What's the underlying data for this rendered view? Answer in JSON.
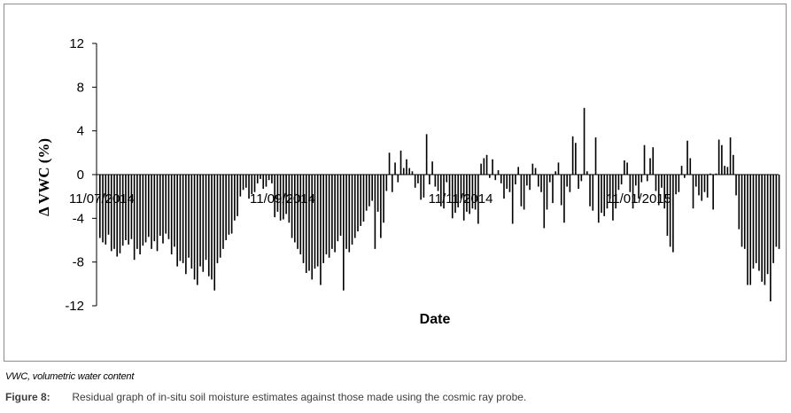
{
  "chart_data": {
    "type": "bar",
    "title": "",
    "xlabel": "Date",
    "ylabel": "Δ VWC (%)",
    "ylim": [
      -12,
      12
    ],
    "yticks": [
      12,
      8,
      4,
      0,
      -4,
      -8,
      -12
    ],
    "date_labels": [
      "11/07/2014",
      "11/09/2014",
      "11/11/2014",
      "11/01/2015"
    ],
    "grid": false,
    "legend": "none",
    "bar_color": "#000000",
    "values": [
      -5.8,
      -6.2,
      -6.4,
      -5.5,
      -7.0,
      -6.8,
      -7.5,
      -7.2,
      -6.5,
      -6.0,
      -6.4,
      -5.9,
      -7.8,
      -6.8,
      -7.3,
      -6.5,
      -6.2,
      -5.7,
      -6.8,
      -6.1,
      -7.0,
      -5.6,
      -6.3,
      -5.4,
      -5.9,
      -7.3,
      -6.6,
      -8.4,
      -7.9,
      -8.1,
      -9.1,
      -7.6,
      -8.6,
      -9.6,
      -10.1,
      -8.4,
      -8.9,
      -7.8,
      -9.3,
      -9.6,
      -10.6,
      -8.1,
      -7.6,
      -6.8,
      -6.0,
      -5.5,
      -5.4,
      -4.2,
      -3.8,
      -2.0,
      -1.4,
      -1.2,
      -2.2,
      -1.8,
      -1.6,
      -0.8,
      -0.4,
      -1.3,
      -1.1,
      -0.5,
      -0.8,
      -3.9,
      -3.4,
      -4.2,
      -4.1,
      -3.6,
      -4.4,
      -5.8,
      -6.2,
      -6.8,
      -7.3,
      -8.1,
      -9.0,
      -8.8,
      -9.6,
      -8.6,
      -8.4,
      -10.1,
      -8.1,
      -7.3,
      -7.6,
      -6.8,
      -7.1,
      -6.1,
      -5.6,
      -10.6,
      -6.8,
      -7.1,
      -6.4,
      -5.8,
      -5.2,
      -4.7,
      -4.3,
      -3.3,
      -2.9,
      -2.4,
      -6.8,
      -3.4,
      -5.8,
      -4.4,
      -1.5,
      2.0,
      -1.6,
      1.1,
      -0.7,
      2.2,
      0.6,
      1.4,
      0.6,
      0.3,
      -1.2,
      -0.8,
      -2.3,
      -2.1,
      3.7,
      -0.9,
      1.2,
      -1.1,
      -1.5,
      -2.9,
      -3.1,
      -0.7,
      -1.9,
      -4.0,
      -3.5,
      -3.0,
      -2.2,
      -4.2,
      -3.4,
      -3.6,
      -3.1,
      -3.2,
      -4.5,
      1.0,
      1.5,
      1.8,
      -0.3,
      1.4,
      -0.5,
      0.4,
      -0.8,
      -2.2,
      -1.3,
      -1.6,
      -4.5,
      -0.9,
      0.7,
      -2.9,
      -3.2,
      -1.0,
      -1.4,
      1.0,
      0.6,
      -1.1,
      -1.6,
      -4.9,
      -3.2,
      -0.7,
      -2.6,
      0.3,
      1.1,
      -2.8,
      -4.4,
      -1.1,
      -1.6,
      3.5,
      2.9,
      -1.3,
      -0.6,
      6.1,
      0.3,
      -2.9,
      -3.3,
      3.4,
      -4.4,
      -3.5,
      -3.8,
      -3.1,
      -2.2,
      -4.2,
      -3.1,
      -1.4,
      -0.9,
      1.3,
      1.1,
      -1.6,
      -3.1,
      -1.0,
      -2.2,
      -0.7,
      2.7,
      -0.6,
      1.5,
      2.5,
      -1.5,
      -2.8,
      -1.2,
      -3.1,
      -5.6,
      -6.6,
      -7.1,
      -1.8,
      -1.6,
      0.8,
      -0.3,
      3.1,
      1.5,
      -3.1,
      -1.1,
      -1.9,
      -2.4,
      -1.6,
      -2.1,
      0.1,
      -3.2,
      0.1,
      3.2,
      2.7,
      0.8,
      0.7,
      3.4,
      1.8,
      -1.9,
      -5.0,
      -6.6,
      -6.8,
      -10.1,
      -10.1,
      -8.6,
      -8.1,
      -8.8,
      -9.8,
      -10.1,
      -9.1,
      -11.6,
      -8.1,
      -6.6,
      -6.8
    ]
  },
  "footnote": "VWC, volumetric water content",
  "caption": {
    "label": "Figure 8:",
    "text": "Residual graph of in-situ soil moisture estimates against those made using the cosmic ray probe."
  }
}
